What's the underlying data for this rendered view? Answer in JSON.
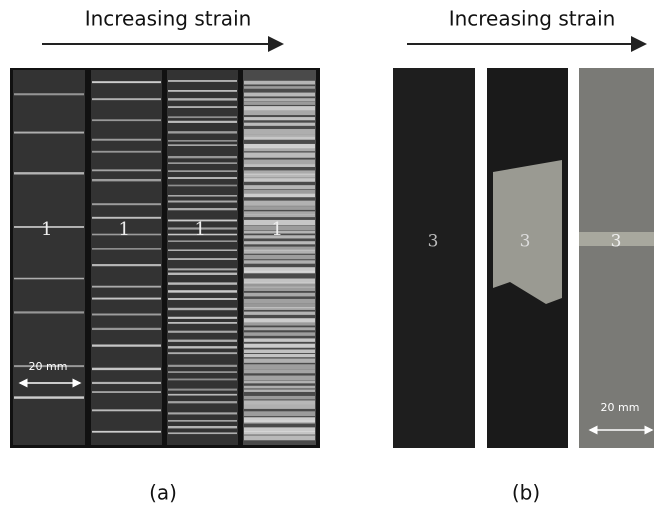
{
  "panels": [
    {
      "heading": "Increasing strain",
      "label": "(a)",
      "scale_bar": "20 mm",
      "specimen_mark": "1"
    },
    {
      "heading": "Increasing strain",
      "label": "(b)",
      "scale_bar": "20 mm",
      "specimen_mark": "3"
    }
  ]
}
